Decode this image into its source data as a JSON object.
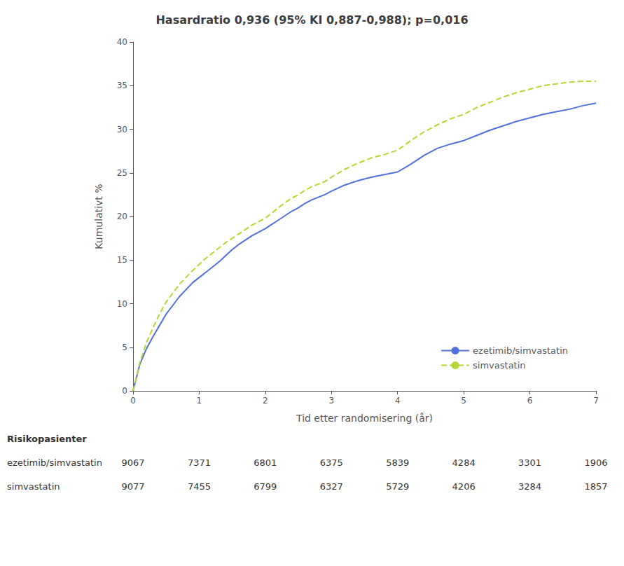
{
  "chart_data": {
    "type": "line",
    "title": "Hasardratio 0,936 (95% KI 0,887-0,988); p=0,016",
    "xlabel": "Tid etter randomisering (år)",
    "ylabel": "Kumulativt %",
    "xlim": [
      0,
      7
    ],
    "xticks": [
      0,
      1,
      2,
      3,
      4,
      5,
      6,
      7
    ],
    "ylim": [
      0,
      40
    ],
    "yticks": [
      0,
      5,
      10,
      15,
      20,
      25,
      30,
      35,
      40
    ],
    "grid": false,
    "legend": "lower right",
    "x": [
      0,
      0.05,
      0.1,
      0.2,
      0.3,
      0.4,
      0.5,
      0.6,
      0.7,
      0.8,
      0.9,
      1.0,
      1.1,
      1.2,
      1.3,
      1.4,
      1.5,
      1.6,
      1.7,
      1.8,
      1.9,
      2.0,
      2.1,
      2.2,
      2.3,
      2.4,
      2.5,
      2.6,
      2.7,
      2.8,
      2.9,
      3.0,
      3.2,
      3.4,
      3.6,
      3.8,
      4.0,
      4.2,
      4.4,
      4.6,
      4.8,
      5.0,
      5.2,
      5.4,
      5.6,
      5.8,
      6.0,
      6.2,
      6.4,
      6.6,
      6.8,
      7.0
    ],
    "series": [
      {
        "name": "ezetimib/simvastatin",
        "line_style": "solid",
        "values": [
          0,
          1.5,
          3.0,
          4.8,
          6.2,
          7.5,
          8.8,
          9.8,
          10.8,
          11.6,
          12.4,
          13.0,
          13.6,
          14.2,
          14.8,
          15.5,
          16.2,
          16.8,
          17.3,
          17.8,
          18.2,
          18.6,
          19.1,
          19.6,
          20.1,
          20.6,
          21.0,
          21.5,
          21.9,
          22.2,
          22.5,
          22.9,
          23.6,
          24.1,
          24.5,
          24.8,
          25.1,
          26.0,
          27.0,
          27.8,
          28.3,
          28.7,
          29.3,
          29.9,
          30.4,
          30.9,
          31.3,
          31.7,
          32.0,
          32.3,
          32.7,
          33.0
        ]
      },
      {
        "name": "simvastatin",
        "line_style": "dashed",
        "values": [
          0,
          1.5,
          3.2,
          5.5,
          7.2,
          8.8,
          10.2,
          11.2,
          12.2,
          13.0,
          13.8,
          14.5,
          15.2,
          15.8,
          16.4,
          17.0,
          17.5,
          18.0,
          18.5,
          19.0,
          19.4,
          19.8,
          20.4,
          21.0,
          21.6,
          22.1,
          22.5,
          23.0,
          23.4,
          23.7,
          24.0,
          24.5,
          25.4,
          26.1,
          26.7,
          27.1,
          27.6,
          28.7,
          29.7,
          30.5,
          31.2,
          31.7,
          32.5,
          33.1,
          33.7,
          34.2,
          34.6,
          35.0,
          35.2,
          35.4,
          35.5,
          35.5
        ]
      }
    ],
    "risk_table": {
      "title": "Risikopasienter",
      "x": [
        0,
        1,
        2,
        3,
        4,
        5,
        6,
        7
      ],
      "rows": [
        {
          "name": "ezetimib/simvastatin",
          "values": [
            9067,
            7371,
            6801,
            6375,
            5839,
            4284,
            3301,
            1906
          ]
        },
        {
          "name": "simvastatin",
          "values": [
            9077,
            7455,
            6799,
            6327,
            5729,
            4206,
            3284,
            1857
          ]
        }
      ]
    }
  }
}
